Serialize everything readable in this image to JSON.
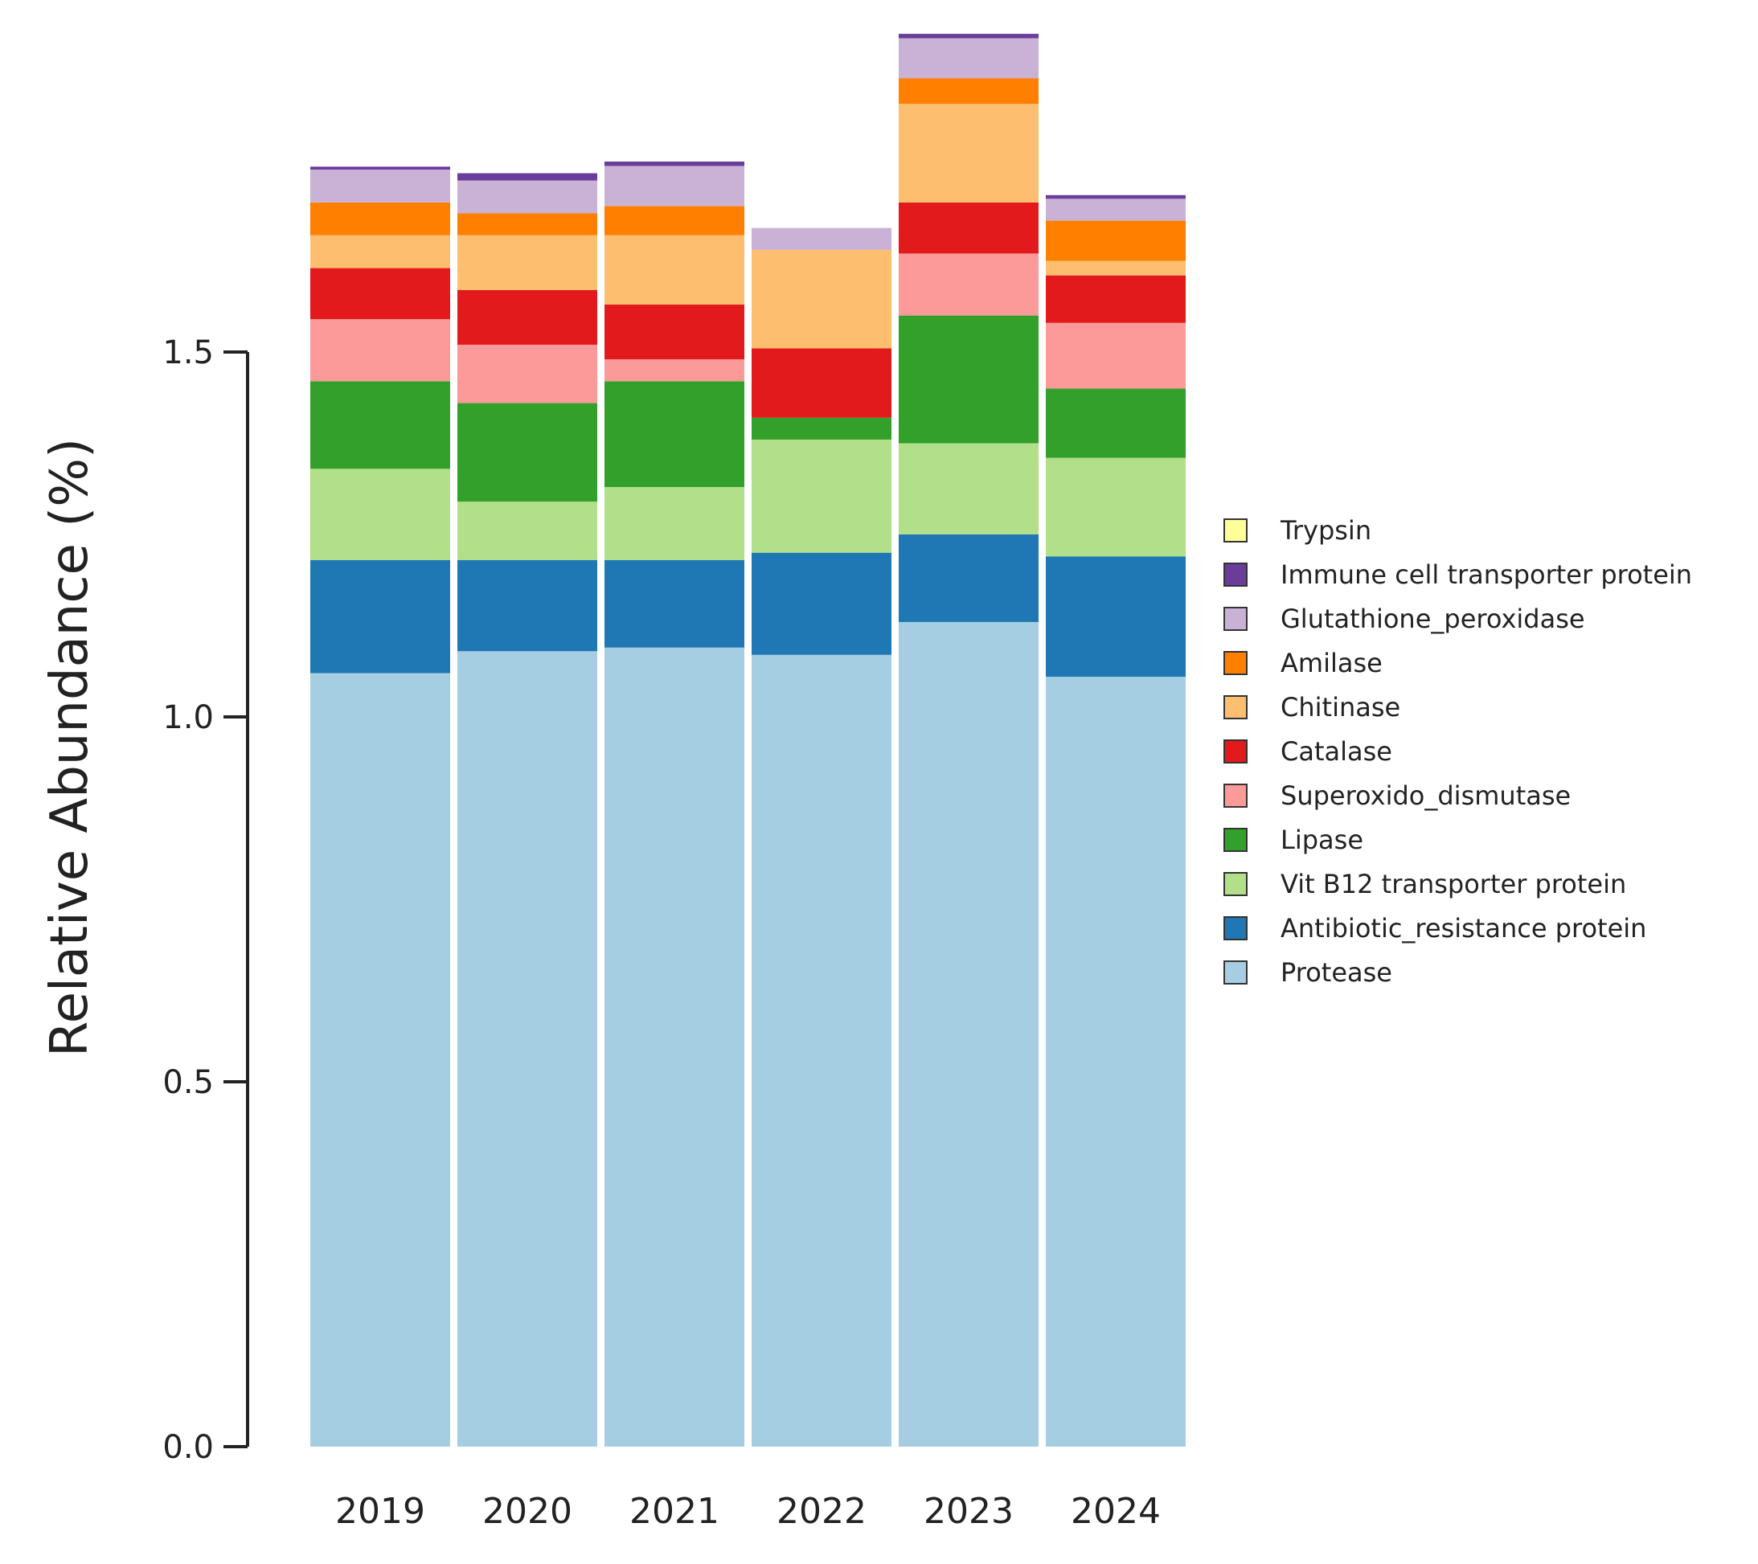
{
  "chart_data": {
    "type": "bar",
    "stacked": true,
    "title": "",
    "xlabel": "",
    "ylabel": "Relative Abundance (%)",
    "ylim": [
      0,
      1.95
    ],
    "yticks": [
      0.0,
      0.5,
      1.0,
      1.5
    ],
    "ytick_labels": [
      "0.0",
      "0.5",
      "1.0",
      "1.5"
    ],
    "grid": false,
    "legend_position": "right",
    "categories": [
      "2019",
      "2020",
      "2021",
      "2022",
      "2023",
      "2024"
    ],
    "series": [
      {
        "name": "Protease",
        "color": "#a6cee3",
        "values": [
          1.06,
          1.09,
          1.095,
          1.085,
          1.13,
          1.055
        ]
      },
      {
        "name": "Antibiotic_resistance protein",
        "color": "#1f78b4",
        "values": [
          0.155,
          0.125,
          0.12,
          0.14,
          0.12,
          0.165
        ]
      },
      {
        "name": "Vit B12 transporter protein",
        "color": "#b2df8a",
        "values": [
          0.125,
          0.08,
          0.1,
          0.155,
          0.125,
          0.135
        ]
      },
      {
        "name": "Lipase",
        "color": "#33a02c",
        "values": [
          0.12,
          0.135,
          0.145,
          0.03,
          0.175,
          0.095
        ]
      },
      {
        "name": "Superoxido_dismutase",
        "color": "#fb9a99",
        "values": [
          0.085,
          0.08,
          0.03,
          0.0,
          0.085,
          0.09
        ]
      },
      {
        "name": "Catalase",
        "color": "#e31a1c",
        "values": [
          0.07,
          0.075,
          0.075,
          0.095,
          0.07,
          0.065
        ]
      },
      {
        "name": "Chitinase",
        "color": "#fdbf6f",
        "values": [
          0.045,
          0.075,
          0.095,
          0.135,
          0.135,
          0.02
        ]
      },
      {
        "name": "Amilase",
        "color": "#ff7f00",
        "values": [
          0.045,
          0.03,
          0.04,
          0.0,
          0.035,
          0.055
        ]
      },
      {
        "name": "Glutathione_peroxidase",
        "color": "#cab2d6",
        "values": [
          0.045,
          0.045,
          0.055,
          0.03,
          0.055,
          0.03
        ]
      },
      {
        "name": "Immune cell transporter protein",
        "color": "#6a3d9a",
        "values": [
          0.004,
          0.01,
          0.006,
          0.0,
          0.006,
          0.005
        ]
      },
      {
        "name": "Trypsin",
        "color": "#ffff99",
        "values": [
          0.0,
          0.0,
          0.0,
          0.0,
          0.0,
          0.0
        ]
      }
    ],
    "legend_order": [
      "Trypsin",
      "Immune cell transporter protein",
      "Glutathione_peroxidase",
      "Amilase",
      "Chitinase",
      "Catalase",
      "Superoxido_dismutase",
      "Lipase",
      "Vit B12 transporter protein",
      "Antibiotic_resistance protein",
      "Protease"
    ]
  }
}
